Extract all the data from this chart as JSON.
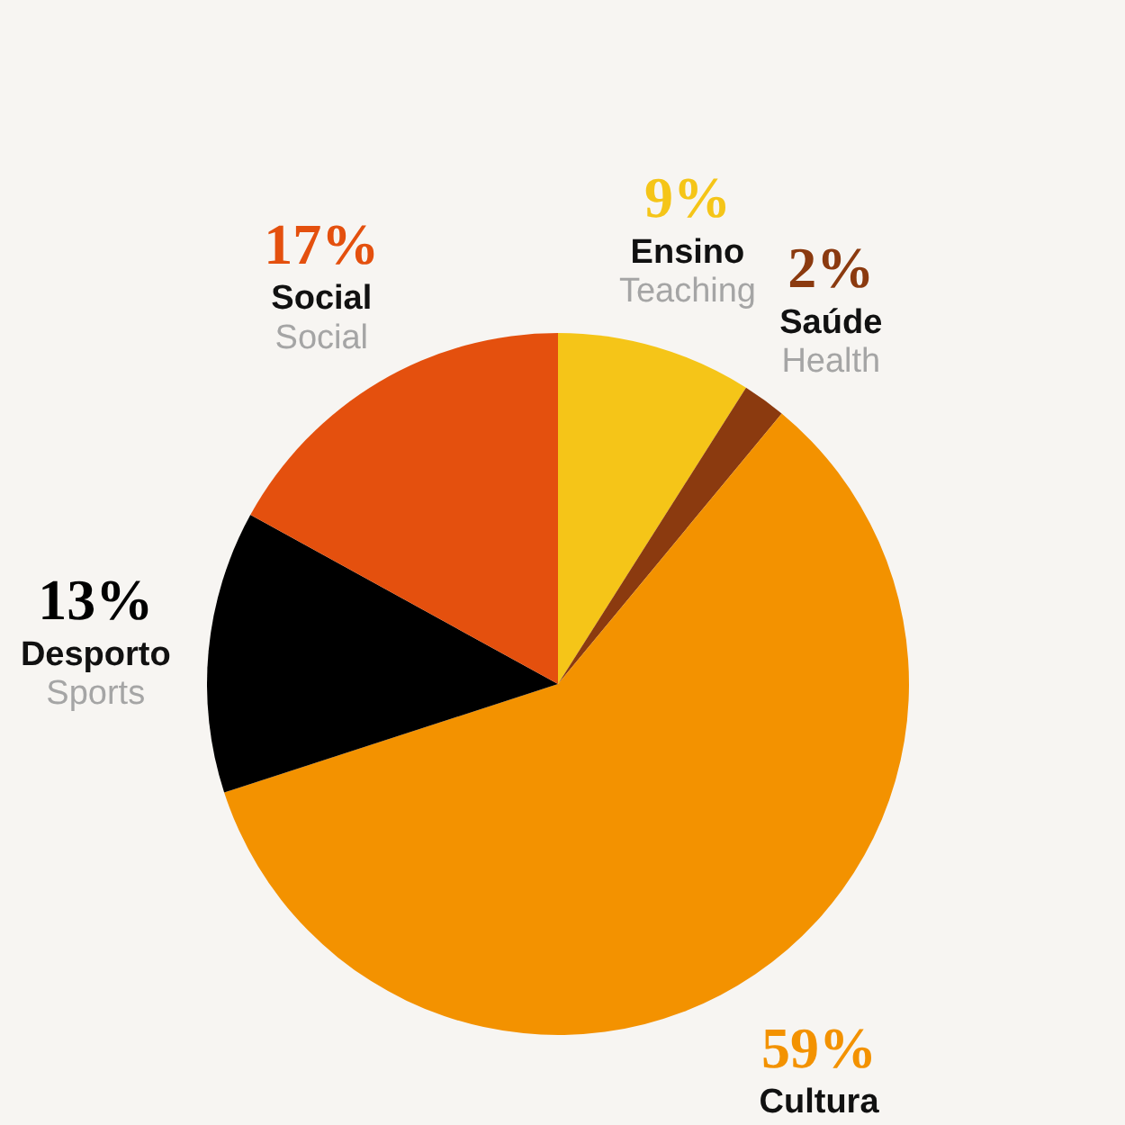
{
  "chart_data": {
    "type": "pie",
    "categories": [
      "Ensino",
      "Saúde",
      "Cultura",
      "Desporto",
      "Social"
    ],
    "values": [
      9,
      2,
      59,
      13,
      17
    ],
    "colors": [
      "#f5c518",
      "#8b3a0f",
      "#f39200",
      "#000000",
      "#e4500e"
    ],
    "value_labels": [
      "9%",
      "2%",
      "59%",
      "13%",
      "17%"
    ],
    "annotations": [
      {
        "text": "Teaching",
        "x": "Ensino"
      },
      {
        "text": "Health",
        "x": "Saúde"
      },
      {
        "text": "Sports",
        "x": "Desporto"
      },
      {
        "text": "Social",
        "x": "Social"
      }
    ]
  }
}
